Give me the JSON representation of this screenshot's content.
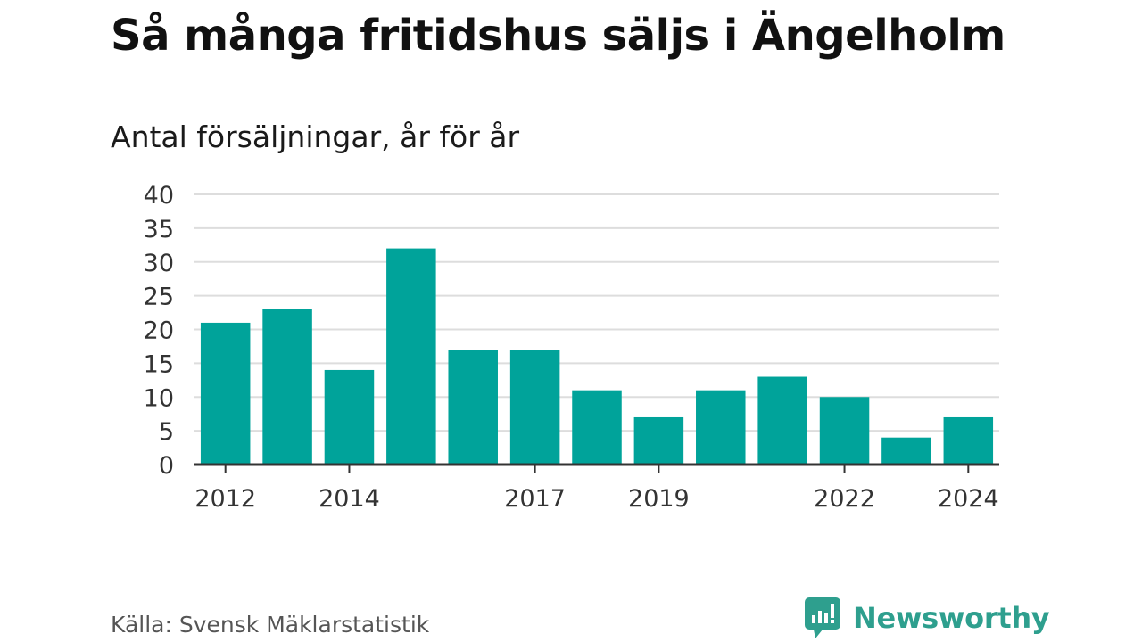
{
  "title": "Så många fritidshus säljs i Ängelholm",
  "subtitle": "Antal försäljningar, år för år",
  "source": "Källa: Svensk Mäklarstatistik",
  "brand": "Newsworthy",
  "colors": {
    "bar": "#00a39a",
    "grid": "#dddddd",
    "axis": "#333333",
    "brand": "#2e9f8e"
  },
  "chart_data": {
    "type": "bar",
    "categories": [
      "2012",
      "2013",
      "2014",
      "2015",
      "2016",
      "2017",
      "2018",
      "2019",
      "2020",
      "2021",
      "2022",
      "2023",
      "2024"
    ],
    "values": [
      21,
      23,
      14,
      32,
      17,
      17,
      11,
      7,
      11,
      13,
      10,
      4,
      7
    ],
    "x_tick_labels": [
      "2012",
      "2014",
      "2017",
      "2019",
      "2022",
      "2024"
    ],
    "y_ticks": [
      0,
      5,
      10,
      15,
      20,
      25,
      30,
      35,
      40
    ],
    "ylim": [
      0,
      40
    ],
    "title": "Så många fritidshus säljs i Ängelholm",
    "subtitle": "Antal försäljningar, år för år",
    "grid": true
  }
}
